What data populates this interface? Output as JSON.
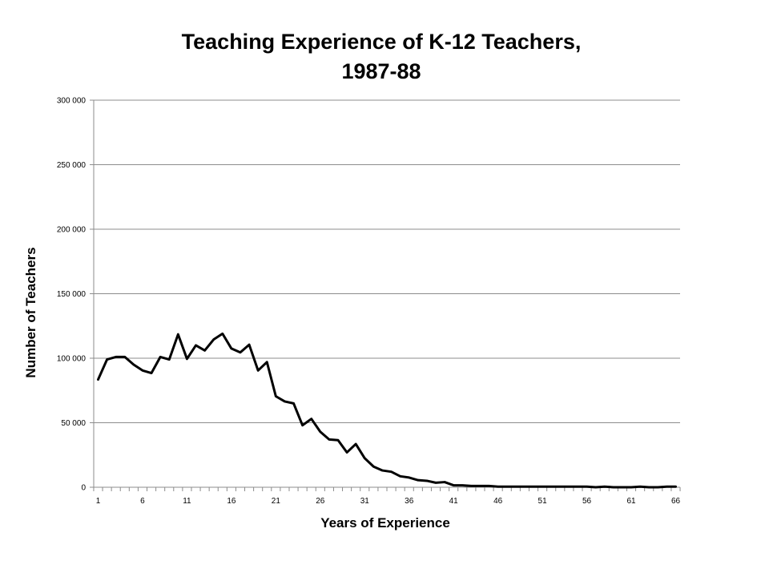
{
  "chart_data": {
    "type": "line",
    "title_lines": [
      "Teaching Experience of K-12 Teachers,",
      "1987-88"
    ],
    "xlabel": "Years of Experience",
    "ylabel": "Number of Teachers",
    "ylim": [
      0,
      300000
    ],
    "yticks": [
      0,
      50000,
      100000,
      150000,
      200000,
      250000,
      300000
    ],
    "ytick_labels": [
      "0",
      "50 000",
      "100 000",
      "150 000",
      "200 000",
      "250 000",
      "300 000"
    ],
    "xlim": [
      1,
      66
    ],
    "xtick_labels": [
      "1",
      "6",
      "11",
      "16",
      "21",
      "26",
      "31",
      "36",
      "41",
      "46",
      "51",
      "56",
      "61",
      "66"
    ],
    "xtick_values": [
      1,
      6,
      11,
      16,
      21,
      26,
      31,
      36,
      41,
      46,
      51,
      56,
      61,
      66
    ],
    "grid": true,
    "line_color": "#000000",
    "series": [
      {
        "x": [
          1,
          2,
          3,
          4,
          5,
          6,
          7,
          8,
          9,
          10,
          11,
          12,
          13,
          14,
          15,
          16,
          17,
          18,
          19,
          20,
          21,
          22,
          23,
          24,
          25,
          26,
          27,
          28,
          29,
          30,
          31,
          32,
          33,
          34,
          35,
          36,
          37,
          38,
          39,
          40,
          41,
          42,
          43,
          44,
          45,
          46,
          47,
          48,
          49,
          50,
          51,
          52,
          53,
          54,
          55,
          56,
          57,
          58,
          59,
          60,
          61,
          62,
          63,
          64,
          65,
          66
        ],
        "values": [
          83500,
          99000,
          101000,
          101000,
          95000,
          90500,
          88500,
          101000,
          99000,
          118500,
          99500,
          110000,
          106000,
          114500,
          119000,
          107500,
          104500,
          110500,
          90500,
          97000,
          70500,
          66500,
          65000,
          48000,
          53000,
          43000,
          37000,
          36500,
          27000,
          33500,
          22500,
          16000,
          13000,
          12000,
          8500,
          7500,
          5500,
          5000,
          3500,
          4000,
          1500,
          1500,
          1000,
          1000,
          1000,
          500,
          500,
          500,
          500,
          500,
          500,
          500,
          500,
          500,
          500,
          500,
          0,
          500,
          0,
          0,
          0,
          500,
          0,
          0,
          500,
          500
        ]
      }
    ]
  }
}
